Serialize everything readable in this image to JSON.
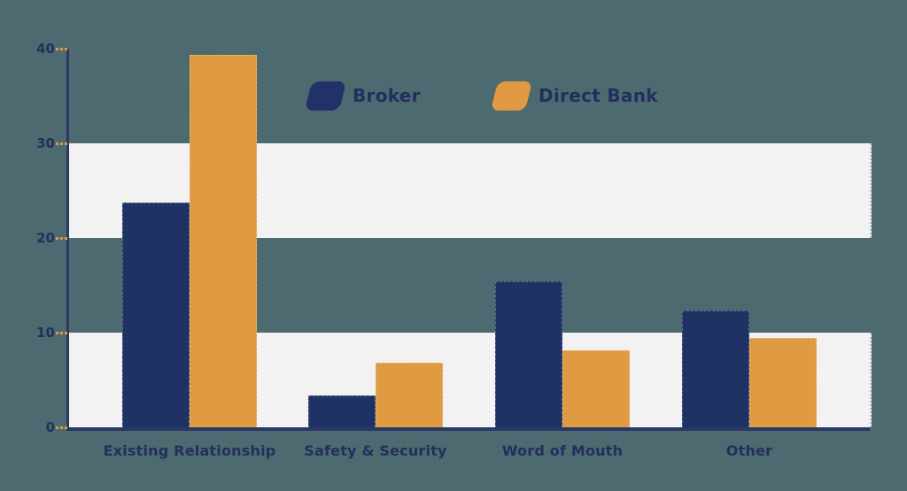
{
  "chart_data": {
    "type": "bar",
    "title": "",
    "xlabel": "",
    "ylabel": "",
    "categories": [
      "Existing Relationship",
      "Safety & Security",
      "Word of Mouth",
      "Other"
    ],
    "series": [
      {
        "name": "Broker",
        "color": "#1e3264",
        "values": [
          23.7,
          3.4,
          15.4,
          12.3
        ]
      },
      {
        "name": "Direct Bank",
        "color": "#e09b42",
        "values": [
          39.3,
          6.8,
          8.1,
          9.4
        ]
      }
    ],
    "ylim": [
      0,
      40
    ],
    "yticks": [
      0,
      10,
      20,
      30,
      40
    ],
    "grid": "alternating horizontal bands",
    "band_ranges": [
      [
        0,
        10
      ],
      [
        20,
        30
      ]
    ],
    "legend_position": "top-center"
  },
  "colors": {
    "background": "#4d6a70",
    "band": "#f2f2f3",
    "axis": "#2b3765",
    "tick": "#e09b42",
    "text": "#232f5c",
    "series_broker": "#1e3264",
    "series_direct_bank": "#e09b42"
  }
}
